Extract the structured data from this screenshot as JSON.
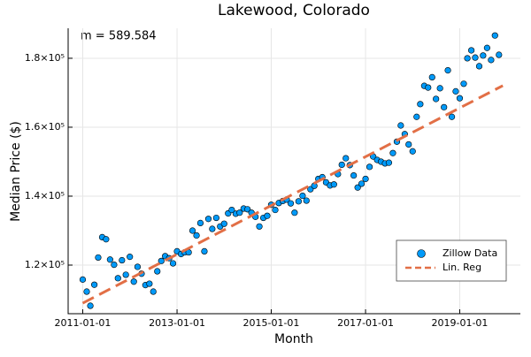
{
  "chart_data": {
    "type": "scatter",
    "title": "Lakewood, Colorado",
    "x_label": "Month",
    "y_label": "Median Price ($)",
    "annotation": "m = 589.584",
    "grid": true,
    "legend": "bottom-right",
    "xlim": [
      "2010-09-10",
      "2020-04-15"
    ],
    "xticks": [
      "2011-01-01",
      "2013-01-01",
      "2015-01-01",
      "2017-01-01",
      "2019-01-01"
    ],
    "ylim": [
      105900,
      188700
    ],
    "yticks": [
      {
        "value": 120000,
        "label": "1.2×10⁵"
      },
      {
        "value": 140000,
        "label": "1.4×10⁵"
      },
      {
        "value": 160000,
        "label": "1.6×10⁵"
      },
      {
        "value": 180000,
        "label": "1.8×10⁵"
      }
    ],
    "series": [
      {
        "name": "Zillow Data",
        "type": "scatter",
        "color": "#009af9",
        "x": [
          "2011-01-01",
          "2011-02-01",
          "2011-03-01",
          "2011-04-01",
          "2011-05-01",
          "2011-06-01",
          "2011-07-01",
          "2011-08-01",
          "2011-09-01",
          "2011-10-01",
          "2011-11-01",
          "2011-12-01",
          "2012-01-01",
          "2012-02-01",
          "2012-03-01",
          "2012-04-01",
          "2012-05-01",
          "2012-06-01",
          "2012-07-01",
          "2012-08-01",
          "2012-09-01",
          "2012-10-01",
          "2012-11-01",
          "2012-12-01",
          "2013-01-01",
          "2013-02-01",
          "2013-03-01",
          "2013-04-01",
          "2013-05-01",
          "2013-06-01",
          "2013-07-01",
          "2013-08-01",
          "2013-09-01",
          "2013-10-01",
          "2013-11-01",
          "2013-12-01",
          "2014-01-01",
          "2014-02-01",
          "2014-03-01",
          "2014-04-01",
          "2014-05-01",
          "2014-06-01",
          "2014-07-01",
          "2014-08-01",
          "2014-09-01",
          "2014-10-01",
          "2014-11-01",
          "2014-12-01",
          "2015-01-01",
          "2015-02-01",
          "2015-03-01",
          "2015-04-01",
          "2015-05-01",
          "2015-06-01",
          "2015-07-01",
          "2015-08-01",
          "2015-09-01",
          "2015-10-01",
          "2015-11-01",
          "2015-12-01",
          "2016-01-01",
          "2016-02-01",
          "2016-03-01",
          "2016-04-01",
          "2016-05-01",
          "2016-06-01",
          "2016-07-01",
          "2016-08-01",
          "2016-09-01",
          "2016-10-01",
          "2016-11-01",
          "2016-12-01",
          "2017-01-01",
          "2017-02-01",
          "2017-03-01",
          "2017-04-01",
          "2017-05-01",
          "2017-06-01",
          "2017-07-01",
          "2017-08-01",
          "2017-09-01",
          "2017-10-01",
          "2017-11-01",
          "2017-12-01",
          "2018-01-01",
          "2018-02-01",
          "2018-03-01",
          "2018-04-01",
          "2018-05-01",
          "2018-06-01",
          "2018-07-01",
          "2018-08-01",
          "2018-09-01",
          "2018-10-01",
          "2018-11-01",
          "2018-12-01",
          "2019-01-01",
          "2019-02-01",
          "2019-03-01",
          "2019-04-01",
          "2019-05-01",
          "2019-06-01",
          "2019-07-01",
          "2019-08-01",
          "2019-09-01",
          "2019-10-01",
          "2019-11-01"
        ],
        "values": [
          115800,
          112300,
          108200,
          114300,
          122200,
          128100,
          127500,
          121600,
          120100,
          116200,
          121400,
          117200,
          122400,
          115200,
          119500,
          117500,
          114200,
          114600,
          112300,
          118200,
          121200,
          122600,
          122000,
          120500,
          124000,
          123200,
          123700,
          123700,
          130000,
          128600,
          132200,
          124000,
          133400,
          130500,
          133700,
          131200,
          132000,
          135000,
          136000,
          134900,
          135200,
          136400,
          136200,
          135200,
          134000,
          131200,
          133700,
          134300,
          137500,
          136000,
          138000,
          138600,
          139000,
          137900,
          135200,
          138500,
          140100,
          138700,
          142000,
          143000,
          145000,
          145500,
          144000,
          143100,
          143400,
          146400,
          149100,
          151000,
          149000,
          146000,
          142500,
          143600,
          145000,
          148500,
          151500,
          150500,
          150000,
          149500,
          149700,
          152500,
          155800,
          160500,
          158000,
          155000,
          153000,
          163000,
          166700,
          172000,
          171500,
          174500,
          168200,
          171300,
          165800,
          176500,
          163000,
          170400,
          168400,
          172600,
          180000,
          182300,
          180200,
          177700,
          180800,
          183000,
          179500,
          186600,
          181000
        ]
      },
      {
        "name": "Lin. Reg",
        "type": "line",
        "color": "#e26f46",
        "x": [
          "2011-01-01",
          "2019-12-01"
        ],
        "values": [
          108970,
          172056
        ]
      }
    ]
  }
}
